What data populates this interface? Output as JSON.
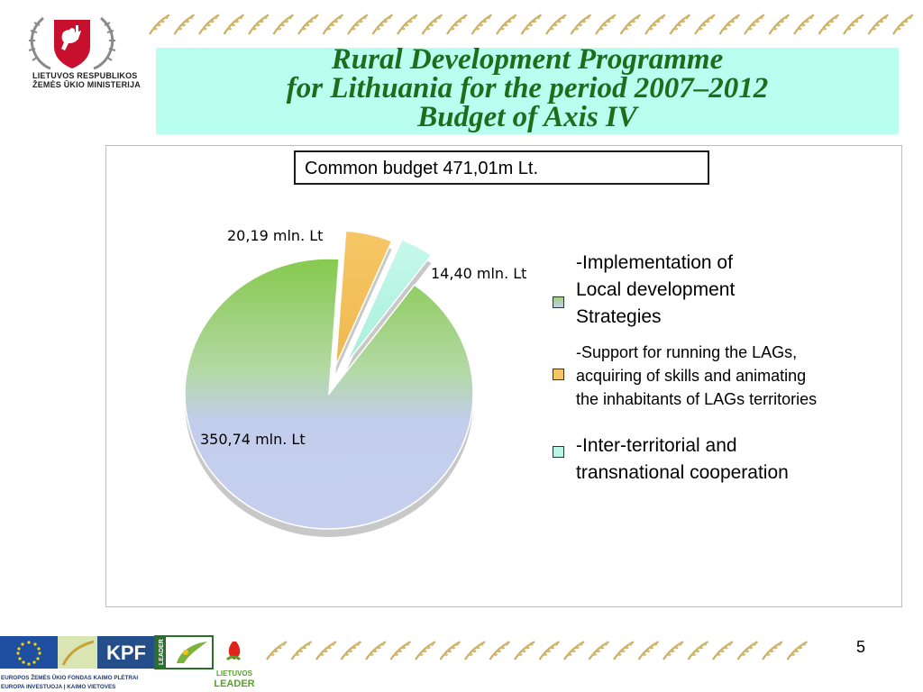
{
  "header": {
    "ministry_lines": [
      "LIETUVOS RESPUBLIKOS",
      "ŽEMĖS ŪKIO MINISTERIJA"
    ],
    "title_lines": [
      "Rural Development Programme",
      "for Lithuania for the period 2007–2012",
      "Budget of Axis IV"
    ]
  },
  "budget_note": "Common budget 471,01m Lt.",
  "chart_data": {
    "type": "pie",
    "title": "",
    "categories": [
      "-Implementation of Local development Strategies",
      "-Support for running the LAGs, acquiring of skills and animating the inhabitants of LAGs territories",
      "-Inter-territorial and transnational  cooperation"
    ],
    "values": [
      350.74,
      20.19,
      14.4
    ],
    "data_labels": [
      "350,74 mln. Lt",
      "20,19 mln. Lt",
      "14,40 mln. Lt"
    ],
    "colors": [
      "#c3cdec",
      "#f5c463",
      "#b8f5e5"
    ],
    "legend_placement": "right",
    "legend": [
      {
        "lines": [
          "-Implementation of",
          "Local development",
          "Strategies"
        ]
      },
      {
        "lines": [
          "-Support for running the LAGs,",
          "acquiring of skills and animating",
          "the inhabitants of LAGs territories"
        ]
      },
      {
        "lines": [
          "-Inter-territorial and",
          "transnational  cooperation"
        ]
      }
    ]
  },
  "footer": {
    "fund_lines": [
      "EUROPOS ŽEMĖS ŪKIO FONDAS KAIMO PLĖTRAI",
      "EUROPA INVESTUOJA Į KAIMO VIETOVES"
    ],
    "kpf_label": "KPF",
    "leader_vertical": "LEADER",
    "lt_leader_lines": [
      "LIETUVOS",
      "LEADER"
    ],
    "page_number": "5"
  }
}
